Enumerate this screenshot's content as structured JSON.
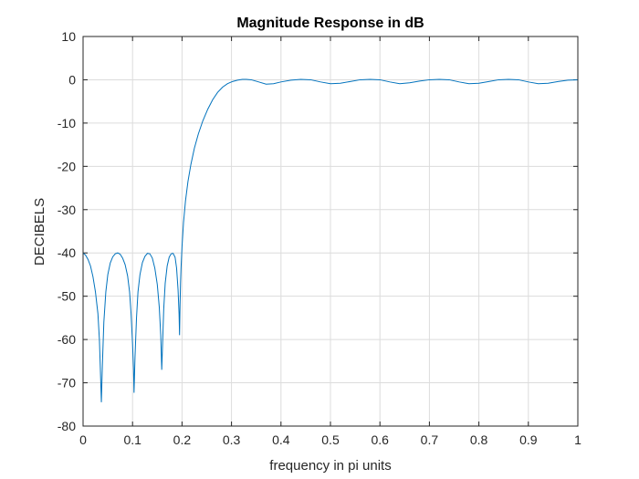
{
  "chart_data": {
    "type": "line",
    "title": "Magnitude Response in dB",
    "xlabel": "frequency in pi units",
    "ylabel": "DECIBELS",
    "xlim": [
      0,
      1
    ],
    "ylim": [
      -80,
      10
    ],
    "x_ticks": [
      "0",
      "0.1",
      "0.2",
      "0.3",
      "0.4",
      "0.5",
      "0.6",
      "0.7",
      "0.8",
      "0.9",
      "1"
    ],
    "y_ticks": [
      "10",
      "0",
      "-10",
      "-20",
      "-30",
      "-40",
      "-50",
      "-60",
      "-70",
      "-80"
    ],
    "grid": true,
    "color": "#0072bd",
    "series": [
      {
        "points": [
          [
            0.0,
            -40.0
          ],
          [
            0.005,
            -40.5
          ],
          [
            0.01,
            -41.5
          ],
          [
            0.015,
            -43.0
          ],
          [
            0.02,
            -45.5
          ],
          [
            0.025,
            -49.0
          ],
          [
            0.03,
            -54.0
          ],
          [
            0.033,
            -60.0
          ],
          [
            0.035,
            -67.0
          ],
          [
            0.037,
            -74.5
          ],
          [
            0.039,
            -66.0
          ],
          [
            0.042,
            -56.0
          ],
          [
            0.046,
            -49.0
          ],
          [
            0.05,
            -45.0
          ],
          [
            0.055,
            -42.3
          ],
          [
            0.06,
            -40.9
          ],
          [
            0.065,
            -40.2
          ],
          [
            0.07,
            -40.0
          ],
          [
            0.075,
            -40.3
          ],
          [
            0.08,
            -41.2
          ],
          [
            0.085,
            -42.7
          ],
          [
            0.09,
            -45.3
          ],
          [
            0.094,
            -49.0
          ],
          [
            0.097,
            -54.0
          ],
          [
            0.1,
            -61.0
          ],
          [
            0.102,
            -67.0
          ],
          [
            0.103,
            -72.3
          ],
          [
            0.105,
            -64.0
          ],
          [
            0.108,
            -55.0
          ],
          [
            0.111,
            -49.0
          ],
          [
            0.115,
            -45.0
          ],
          [
            0.12,
            -42.2
          ],
          [
            0.125,
            -40.8
          ],
          [
            0.13,
            -40.1
          ],
          [
            0.135,
            -40.2
          ],
          [
            0.14,
            -41.2
          ],
          [
            0.145,
            -43.5
          ],
          [
            0.15,
            -47.3
          ],
          [
            0.154,
            -52.5
          ],
          [
            0.157,
            -59.0
          ],
          [
            0.159,
            -67.0
          ],
          [
            0.161,
            -60.0
          ],
          [
            0.163,
            -53.0
          ],
          [
            0.166,
            -47.0
          ],
          [
            0.17,
            -43.0
          ],
          [
            0.174,
            -41.0
          ],
          [
            0.178,
            -40.2
          ],
          [
            0.182,
            -40.1
          ],
          [
            0.186,
            -41.0
          ],
          [
            0.189,
            -43.5
          ],
          [
            0.192,
            -48.5
          ],
          [
            0.194,
            -54.0
          ],
          [
            0.195,
            -59.0
          ],
          [
            0.196,
            -52.0
          ],
          [
            0.197,
            -47.0
          ],
          [
            0.198,
            -43.5
          ],
          [
            0.2,
            -38.5
          ],
          [
            0.203,
            -33.0
          ],
          [
            0.207,
            -28.0
          ],
          [
            0.212,
            -23.5
          ],
          [
            0.218,
            -19.5
          ],
          [
            0.225,
            -15.8
          ],
          [
            0.233,
            -12.5
          ],
          [
            0.242,
            -9.5
          ],
          [
            0.252,
            -6.8
          ],
          [
            0.262,
            -4.6
          ],
          [
            0.272,
            -2.9
          ],
          [
            0.282,
            -1.7
          ],
          [
            0.292,
            -0.9
          ],
          [
            0.302,
            -0.4
          ],
          [
            0.312,
            -0.1
          ],
          [
            0.322,
            0.1
          ],
          [
            0.33,
            0.1
          ],
          [
            0.34,
            0.0
          ],
          [
            0.355,
            -0.5
          ],
          [
            0.37,
            -1.0
          ],
          [
            0.385,
            -0.9
          ],
          [
            0.4,
            -0.5
          ],
          [
            0.42,
            -0.1
          ],
          [
            0.44,
            0.1
          ],
          [
            0.46,
            0.0
          ],
          [
            0.48,
            -0.5
          ],
          [
            0.5,
            -0.9
          ],
          [
            0.52,
            -0.8
          ],
          [
            0.54,
            -0.4
          ],
          [
            0.56,
            0.0
          ],
          [
            0.58,
            0.1
          ],
          [
            0.6,
            0.0
          ],
          [
            0.62,
            -0.5
          ],
          [
            0.64,
            -0.9
          ],
          [
            0.66,
            -0.7
          ],
          [
            0.68,
            -0.3
          ],
          [
            0.7,
            0.0
          ],
          [
            0.72,
            0.1
          ],
          [
            0.74,
            0.0
          ],
          [
            0.76,
            -0.5
          ],
          [
            0.78,
            -0.9
          ],
          [
            0.8,
            -0.8
          ],
          [
            0.82,
            -0.4
          ],
          [
            0.84,
            0.0
          ],
          [
            0.86,
            0.1
          ],
          [
            0.88,
            0.0
          ],
          [
            0.9,
            -0.5
          ],
          [
            0.92,
            -0.9
          ],
          [
            0.94,
            -0.8
          ],
          [
            0.96,
            -0.4
          ],
          [
            0.98,
            -0.1
          ],
          [
            1.0,
            0.0
          ]
        ]
      }
    ]
  }
}
